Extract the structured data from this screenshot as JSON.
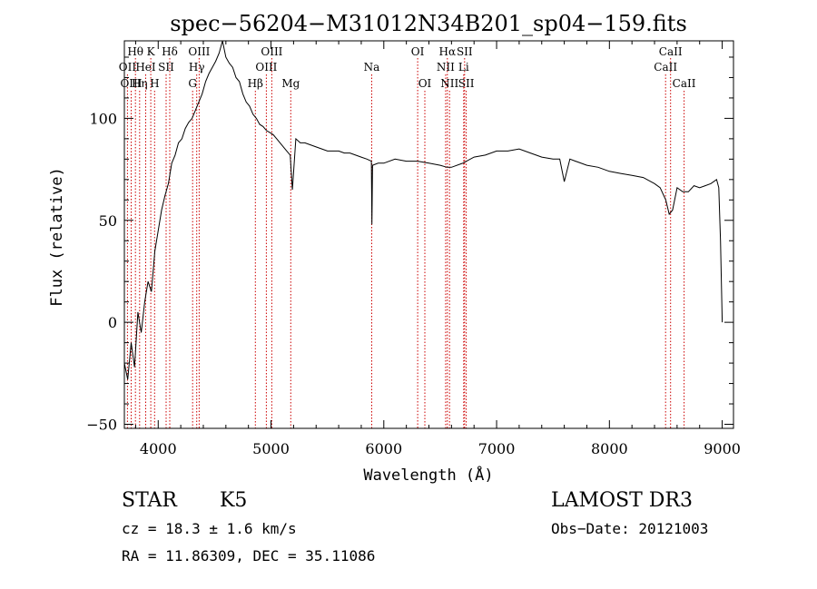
{
  "chart_data": {
    "type": "line",
    "title": "spec−56204−M31012N34B201_sp04−159.fits",
    "xlabel": "Wavelength (Å)",
    "ylabel": "Flux (relative)",
    "xlim": [
      3700,
      9100
    ],
    "ylim": [
      -52,
      138
    ],
    "xticks": [
      4000,
      5000,
      6000,
      7000,
      8000,
      9000
    ],
    "yticks": [
      -50,
      0,
      50,
      100
    ],
    "x": [
      3700,
      3730,
      3760,
      3790,
      3820,
      3850,
      3880,
      3910,
      3940,
      3970,
      4000,
      4030,
      4060,
      4090,
      4120,
      4150,
      4180,
      4210,
      4240,
      4270,
      4300,
      4330,
      4360,
      4390,
      4420,
      4450,
      4480,
      4510,
      4540,
      4570,
      4600,
      4630,
      4660,
      4690,
      4720,
      4750,
      4780,
      4810,
      4840,
      4870,
      4900,
      4930,
      4960,
      4990,
      5020,
      5050,
      5080,
      5110,
      5140,
      5170,
      5190,
      5220,
      5260,
      5300,
      5350,
      5400,
      5450,
      5500,
      5550,
      5600,
      5650,
      5700,
      5750,
      5800,
      5850,
      5890,
      5895,
      5900,
      5950,
      6000,
      6100,
      6200,
      6300,
      6400,
      6500,
      6560,
      6600,
      6700,
      6800,
      6900,
      7000,
      7100,
      7200,
      7300,
      7400,
      7500,
      7560,
      7600,
      7650,
      7700,
      7800,
      7900,
      8000,
      8100,
      8200,
      8300,
      8400,
      8450,
      8500,
      8530,
      8560,
      8600,
      8650,
      8700,
      8750,
      8800,
      8850,
      8900,
      8950,
      8970,
      8985,
      9000
    ],
    "y": [
      -20,
      -28,
      -10,
      -22,
      5,
      -5,
      10,
      20,
      15,
      35,
      45,
      55,
      62,
      68,
      78,
      82,
      88,
      90,
      95,
      98,
      100,
      104,
      108,
      112,
      118,
      122,
      125,
      128,
      132,
      138,
      130,
      127,
      125,
      120,
      118,
      112,
      108,
      106,
      102,
      100,
      97,
      96,
      94,
      93,
      92,
      90,
      88,
      86,
      84,
      82,
      65,
      90,
      88,
      88,
      87,
      86,
      85,
      84,
      84,
      84,
      83,
      83,
      82,
      81,
      80,
      79,
      48,
      77,
      78,
      78,
      80,
      79,
      79,
      78,
      77,
      76,
      76,
      78,
      81,
      82,
      84,
      84,
      85,
      83,
      81,
      80,
      80,
      69,
      80,
      79,
      77,
      76,
      74,
      73,
      72,
      71,
      68,
      66,
      60,
      53,
      55,
      66,
      64,
      64,
      67,
      66,
      67,
      68,
      70,
      66,
      40,
      0
    ],
    "line_labels": [
      {
        "label": "Hθ",
        "wavelength": 3798,
        "row": 1
      },
      {
        "label": "OII",
        "wavelength": 3727,
        "row": 2
      },
      {
        "label": "OIII",
        "wavelength": 3760,
        "row": 3
      },
      {
        "label": "K",
        "wavelength": 3934,
        "row": 1
      },
      {
        "label": "HeI",
        "wavelength": 3889,
        "row": 2
      },
      {
        "label": "Hη",
        "wavelength": 3835,
        "row": 3
      },
      {
        "label": "Hδ",
        "wavelength": 4102,
        "row": 1
      },
      {
        "label": "SII",
        "wavelength": 4070,
        "row": 2
      },
      {
        "label": "H",
        "wavelength": 3968,
        "row": 3
      },
      {
        "label": "OIII",
        "wavelength": 4363,
        "row": 1
      },
      {
        "label": "Hγ",
        "wavelength": 4341,
        "row": 2
      },
      {
        "label": "G",
        "wavelength": 4305,
        "row": 3
      },
      {
        "label": "OIII",
        "wavelength": 5007,
        "row": 1
      },
      {
        "label": "OIII",
        "wavelength": 4959,
        "row": 2
      },
      {
        "label": "Hβ",
        "wavelength": 4861,
        "row": 3
      },
      {
        "label": "Mg",
        "wavelength": 5175,
        "row": 3
      },
      {
        "label": "Na",
        "wavelength": 5893,
        "row": 2
      },
      {
        "label": "OI",
        "wavelength": 6300,
        "row": 1
      },
      {
        "label": "OI",
        "wavelength": 6364,
        "row": 3
      },
      {
        "label": "Hα",
        "wavelength": 6563,
        "row": 1
      },
      {
        "label": "SII",
        "wavelength": 6716,
        "row": 1
      },
      {
        "label": "NII",
        "wavelength": 6548,
        "row": 2
      },
      {
        "label": "Li",
        "wavelength": 6708,
        "row": 2
      },
      {
        "label": "NII",
        "wavelength": 6583,
        "row": 3
      },
      {
        "label": "SII",
        "wavelength": 6731,
        "row": 3
      },
      {
        "label": "CaII",
        "wavelength": 8542,
        "row": 1
      },
      {
        "label": "CaII",
        "wavelength": 8498,
        "row": 2
      },
      {
        "label": "CaII",
        "wavelength": 8662,
        "row": 3
      }
    ],
    "colors": {
      "spectrum": "#000000",
      "line_markers": "#cc0000",
      "axes": "#000000"
    }
  },
  "info": {
    "class_label": "STAR",
    "subclass_label": "K5",
    "redshift": "cz = 18.3 ± 1.6 km/s",
    "coordinates": "RA =  11.86309, DEC =  35.11086",
    "survey": "LAMOST DR3",
    "obs_date": "Obs−Date: 20121003"
  }
}
